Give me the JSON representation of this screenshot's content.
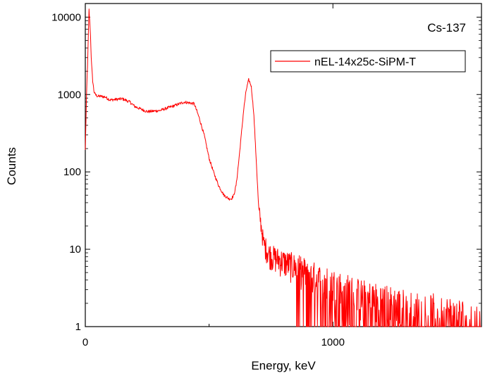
{
  "chart_data": {
    "type": "line",
    "xlabel": "Energy, keV",
    "ylabel": "Counts",
    "xlim": [
      0,
      1600
    ],
    "ylim": [
      1,
      15000
    ],
    "yscale": "log",
    "x_ticks": [
      0,
      1000
    ],
    "x_tick_labels": [
      "0",
      "1000"
    ],
    "y_ticks": [
      1,
      10,
      100,
      1000,
      10000
    ],
    "y_tick_labels": [
      "1",
      "10",
      "100",
      "1000",
      "10000"
    ],
    "annotation": "Cs-137",
    "legend_position": "top-right",
    "grid": false,
    "series": [
      {
        "name": "nEL-14x25c-SiPM-T",
        "color": "#ff0000",
        "x": [
          0,
          5,
          10,
          15,
          20,
          25,
          30,
          35,
          40,
          50,
          60,
          80,
          100,
          150,
          180,
          200,
          250,
          300,
          350,
          400,
          440,
          460,
          480,
          500,
          520,
          540,
          560,
          580,
          590,
          600,
          610,
          620,
          630,
          640,
          650,
          660,
          670,
          680,
          690,
          700,
          720,
          740,
          760,
          800,
          850,
          900,
          950,
          1000,
          1050,
          1100,
          1150,
          1200,
          1250,
          1300,
          1350,
          1400,
          1450,
          1500,
          1550,
          1600
        ],
        "y": [
          190,
          1000,
          3000,
          12500,
          7000,
          2500,
          1500,
          1100,
          1000,
          950,
          950,
          930,
          850,
          880,
          800,
          700,
          600,
          620,
          700,
          800,
          760,
          500,
          300,
          150,
          95,
          65,
          50,
          45,
          45,
          50,
          70,
          140,
          300,
          650,
          1150,
          1550,
          1300,
          600,
          150,
          35,
          12,
          9,
          8,
          7,
          6,
          5,
          4,
          3.5,
          3,
          2.5,
          2.2,
          2,
          1.8,
          1.6,
          1.5,
          1.4,
          1.3,
          1.2,
          1.1,
          1
        ]
      }
    ]
  }
}
